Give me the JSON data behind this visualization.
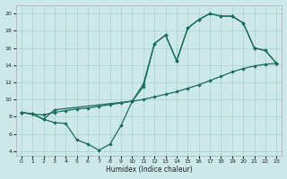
{
  "xlabel": "Humidex (Indice chaleur)",
  "bg_color": "#cce8e8",
  "grid_color": "#aad0d0",
  "line_color": "#1a6b5a",
  "xlim": [
    -0.5,
    23.5
  ],
  "ylim": [
    3.5,
    21
  ],
  "xticks": [
    0,
    1,
    2,
    3,
    4,
    5,
    6,
    7,
    8,
    9,
    10,
    11,
    12,
    13,
    14,
    15,
    16,
    17,
    18,
    19,
    20,
    21,
    22,
    23
  ],
  "yticks": [
    4,
    6,
    8,
    10,
    12,
    14,
    16,
    18,
    20
  ],
  "line1_x": [
    0,
    1,
    2,
    3,
    4,
    5,
    6,
    7,
    8,
    9,
    10,
    11,
    12,
    13,
    14,
    15,
    16,
    17,
    18,
    19,
    20,
    21,
    22,
    23
  ],
  "line1_y": [
    8.5,
    8.3,
    8.2,
    8.5,
    8.7,
    8.9,
    9.0,
    9.2,
    9.4,
    9.6,
    9.8,
    10.0,
    10.3,
    10.6,
    10.9,
    11.3,
    11.7,
    12.2,
    12.7,
    13.2,
    13.6,
    13.9,
    14.1,
    14.2
  ],
  "line2_x": [
    0,
    1,
    2,
    3,
    10,
    11,
    12,
    13,
    14,
    15,
    16,
    17,
    18,
    19,
    20,
    21,
    22,
    23
  ],
  "line2_y": [
    8.5,
    8.3,
    7.7,
    8.8,
    9.8,
    11.5,
    16.5,
    17.5,
    14.5,
    18.3,
    19.3,
    20.0,
    19.7,
    19.7,
    18.9,
    16.0,
    15.7,
    14.2
  ],
  "line3_x": [
    0,
    1,
    2,
    3,
    4,
    5,
    6,
    7,
    8,
    9,
    10,
    11,
    12,
    13,
    14,
    15,
    16,
    17,
    18,
    19,
    20,
    21,
    22,
    23
  ],
  "line3_y": [
    8.5,
    8.3,
    7.7,
    7.3,
    7.2,
    5.3,
    4.8,
    4.1,
    4.8,
    7.0,
    9.8,
    11.8,
    16.5,
    17.5,
    14.5,
    18.3,
    19.3,
    20.0,
    19.7,
    19.7,
    18.9,
    16.0,
    15.7,
    14.2
  ]
}
